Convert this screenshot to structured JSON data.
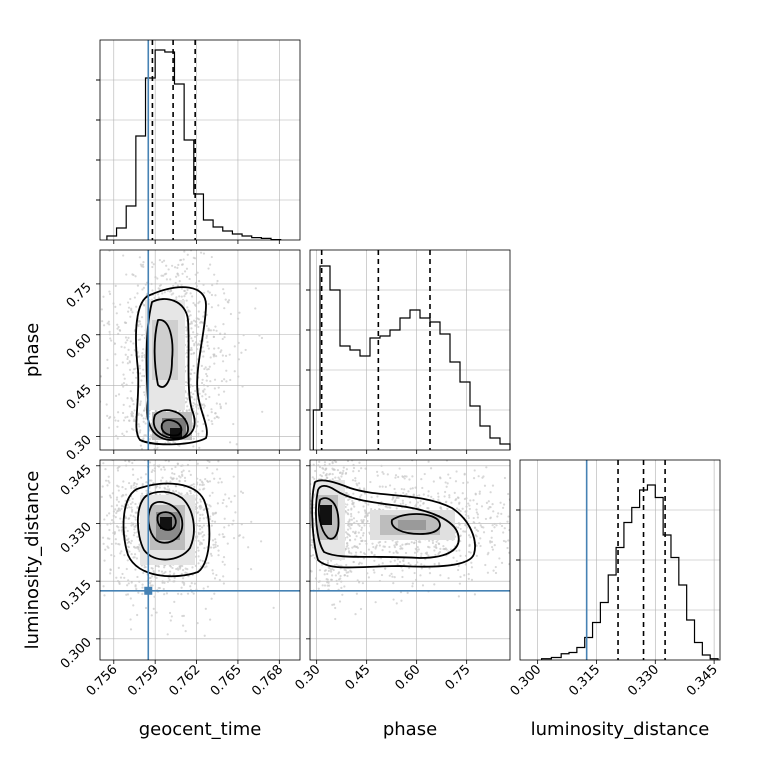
{
  "chart_data": {
    "type": "corner",
    "parameters": [
      "geocent_time",
      "phase",
      "luminosity_distance"
    ],
    "truths": {
      "geocent_time": 0.7585,
      "phase": null,
      "luminosity_distance": 0.3125
    },
    "grid": true,
    "panels": [
      {
        "id": "geocent_time-hist",
        "type": "histogram",
        "x_param": "geocent_time",
        "xlim": [
          0.755,
          0.7695
        ],
        "bin_edges": [
          0.7555,
          0.7562,
          0.7569,
          0.7576,
          0.7583,
          0.759,
          0.7597,
          0.7604,
          0.7611,
          0.7618,
          0.7625,
          0.7632,
          0.7639,
          0.7646,
          0.7653,
          0.766,
          0.7667,
          0.7674,
          0.7681
        ],
        "counts": [
          0.2,
          0.6,
          1.7,
          5.2,
          8.1,
          9.5,
          9.4,
          7.8,
          5.0,
          2.3,
          1.0,
          0.65,
          0.45,
          0.3,
          0.2,
          0.12,
          0.08,
          0.02
        ],
        "quantiles": [
          0.7588,
          0.7603,
          0.7619
        ],
        "truth": 0.7585,
        "ylim": [
          0,
          10
        ]
      },
      {
        "id": "phase-vs-geocent_time",
        "type": "2d-density",
        "x_param": "geocent_time",
        "y_param": "phase",
        "xlim": [
          0.755,
          0.7695
        ],
        "ylim": [
          0.26,
          0.85
        ],
        "yticks": [
          0.3,
          0.45,
          0.6,
          0.75
        ],
        "truth_x": 0.7585
      },
      {
        "id": "phase-hist",
        "type": "histogram",
        "x_param": "phase",
        "xlim": [
          0.28,
          0.88
        ],
        "bin_edges": [
          0.29,
          0.31,
          0.34,
          0.37,
          0.4,
          0.43,
          0.46,
          0.49,
          0.52,
          0.55,
          0.58,
          0.61,
          0.64,
          0.67,
          0.7,
          0.73,
          0.76,
          0.79,
          0.82,
          0.85,
          0.88
        ],
        "counts": [
          1.0,
          4.6,
          4.0,
          2.6,
          2.5,
          2.35,
          2.8,
          2.85,
          3.0,
          3.3,
          3.5,
          3.3,
          3.2,
          2.9,
          2.2,
          1.7,
          1.1,
          0.6,
          0.3,
          0.15
        ],
        "quantiles": [
          0.315,
          0.485,
          0.64
        ],
        "ylim": [
          0,
          5
        ]
      },
      {
        "id": "luminosity_distance-vs-geocent_time",
        "type": "2d-density",
        "x_param": "geocent_time",
        "y_param": "luminosity_distance",
        "xlim": [
          0.755,
          0.7695
        ],
        "ylim": [
          0.2945,
          0.3465
        ],
        "xticks": [
          0.756,
          0.759,
          0.762,
          0.765,
          0.768
        ],
        "yticks": [
          0.3,
          0.315,
          0.33,
          0.345
        ],
        "truth_x": 0.7585,
        "truth_y": 0.3125
      },
      {
        "id": "luminosity_distance-vs-phase",
        "type": "2d-density",
        "x_param": "phase",
        "y_param": "luminosity_distance",
        "xlim": [
          0.28,
          0.88
        ],
        "ylim": [
          0.2945,
          0.3465
        ],
        "xticks": [
          0.3,
          0.45,
          0.6,
          0.75
        ],
        "truth_y": 0.3125
      },
      {
        "id": "luminosity_distance-hist",
        "type": "histogram",
        "x_param": "luminosity_distance",
        "xlim": [
          0.2955,
          0.3465
        ],
        "bin_edges": [
          0.301,
          0.3035,
          0.306,
          0.308,
          0.31,
          0.312,
          0.314,
          0.316,
          0.318,
          0.32,
          0.322,
          0.324,
          0.326,
          0.328,
          0.33,
          0.332,
          0.334,
          0.336,
          0.338,
          0.34,
          0.342,
          0.344,
          0.346
        ],
        "counts": [
          0.05,
          0.1,
          0.25,
          0.3,
          0.5,
          0.9,
          1.5,
          2.3,
          3.4,
          4.5,
          5.5,
          6.1,
          6.8,
          7.0,
          6.5,
          5.0,
          4.1,
          3.0,
          1.6,
          0.7,
          0.2,
          0.05
        ],
        "quantiles": [
          0.3205,
          0.327,
          0.3325
        ],
        "truth": 0.3125,
        "xticks": [
          0.3,
          0.315,
          0.33,
          0.345
        ],
        "ylim": [
          0,
          8
        ]
      }
    ]
  },
  "colors": {
    "truth": "#4682b4",
    "contour": "#000000",
    "scatter": "#c8c8c8",
    "grid": "#b0b0b0",
    "hist": "#000000"
  }
}
